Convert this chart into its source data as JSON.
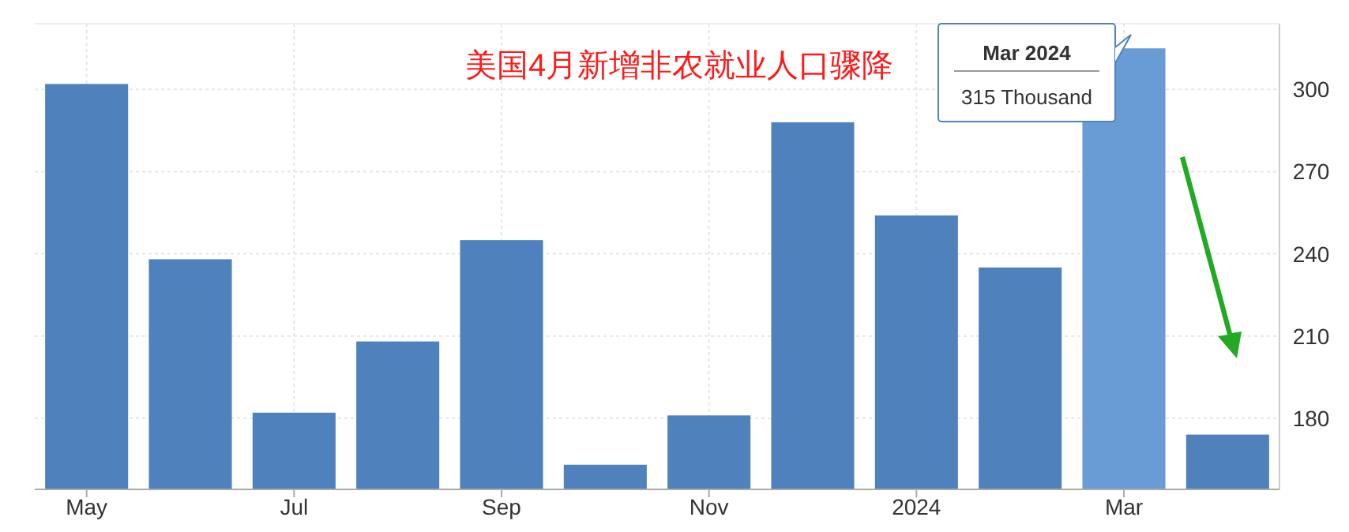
{
  "chart_data": {
    "type": "bar",
    "title": "美国4月新增非农就业人口骤降",
    "categories": [
      "May",
      null,
      "Jul",
      null,
      "Sep",
      null,
      "Nov",
      null,
      "2024",
      null,
      "Mar",
      null
    ],
    "values": [
      302,
      238,
      182,
      208,
      245,
      163,
      181,
      288,
      254,
      235,
      315,
      174
    ],
    "colors": [
      "#4f81bd",
      "#4f81bd",
      "#4f81bd",
      "#4f81bd",
      "#4f81bd",
      "#4f81bd",
      "#4f81bd",
      "#4f81bd",
      "#4f81bd",
      "#4f81bd",
      "#699bd5",
      "#4f81bd"
    ],
    "ylim": [
      154,
      324
    ],
    "yticks": [
      180,
      210,
      240,
      270,
      300
    ],
    "grid": true,
    "annotations": [
      "Mar 2024",
      "315 Thousand"
    ]
  }
}
